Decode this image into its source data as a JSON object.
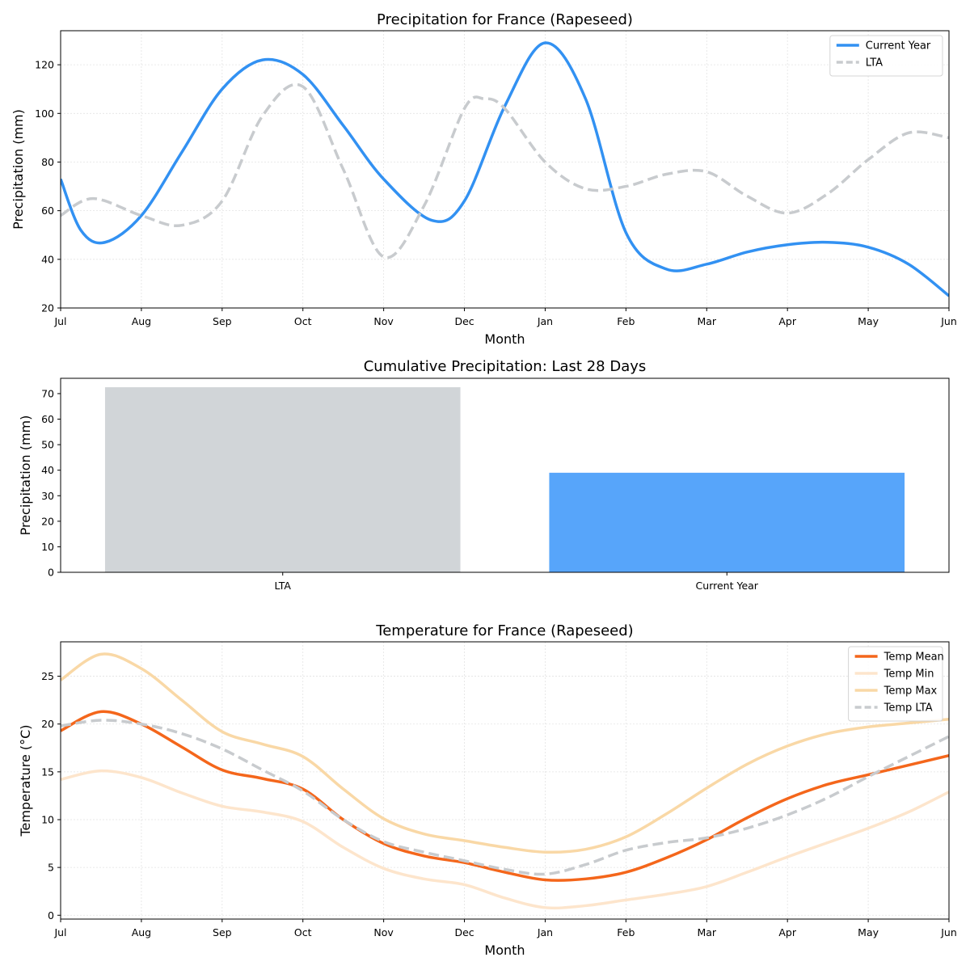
{
  "chart_data": [
    {
      "type": "line",
      "title": "Precipitation for France (Rapeseed)",
      "xlabel": "Month",
      "ylabel": "Precipitation (mm)",
      "x_ticks": [
        "Jul",
        "Aug",
        "Sep",
        "Oct",
        "Nov",
        "Dec",
        "Jan",
        "Feb",
        "Mar",
        "Apr",
        "May",
        "Jun"
      ],
      "xlim": [
        0,
        11
      ],
      "ylim": [
        20,
        134
      ],
      "y_ticks": [
        20,
        40,
        60,
        80,
        100,
        120
      ],
      "grid": true,
      "legend": "top-right",
      "series": [
        {
          "name": "Current Year",
          "color": "#3291f2",
          "dash": "solid",
          "x": [
            0,
            0.25,
            0.55,
            1,
            1.5,
            2,
            2.5,
            3,
            3.5,
            4,
            4.6,
            5,
            5.5,
            6,
            6.5,
            7,
            7.5,
            8,
            8.5,
            9,
            9.5,
            10,
            10.5,
            11
          ],
          "y": [
            73,
            52,
            47,
            58,
            84,
            110,
            122,
            116,
            95,
            73,
            56,
            64,
            103,
            129,
            106,
            51,
            36,
            38,
            43,
            46,
            47,
            45,
            38,
            25
          ]
        },
        {
          "name": "LTA",
          "color": "#c8cbce",
          "dash": "dashed",
          "x": [
            0,
            0.4,
            1,
            1.5,
            2,
            2.5,
            3,
            3.5,
            4,
            4.5,
            5,
            5.25,
            5.5,
            6,
            6.5,
            7,
            7.5,
            8,
            8.5,
            9,
            9.5,
            10,
            10.5,
            11
          ],
          "y": [
            58,
            65,
            58,
            54,
            64,
            99,
            111,
            77,
            41,
            62,
            102,
            106,
            102,
            80,
            69,
            70,
            75,
            76,
            66,
            59,
            67,
            81,
            92,
            90
          ]
        }
      ]
    },
    {
      "type": "bar",
      "title": "Cumulative Precipitation: Last 28 Days",
      "ylabel": "Precipitation (mm)",
      "categories": [
        "LTA",
        "Current Year"
      ],
      "values": [
        72.5,
        39
      ],
      "colors": [
        "#d1d5d8",
        "#57a5fa"
      ],
      "ylim": [
        0,
        76
      ],
      "y_ticks": [
        0,
        10,
        20,
        30,
        40,
        50,
        60,
        70
      ]
    },
    {
      "type": "line",
      "title": "Temperature for France (Rapeseed)",
      "xlabel": "Month",
      "ylabel": "Temperature (°C)",
      "x_ticks": [
        "Jul",
        "Aug",
        "Sep",
        "Oct",
        "Nov",
        "Dec",
        "Jan",
        "Feb",
        "Mar",
        "Apr",
        "May",
        "Jun"
      ],
      "xlim": [
        0,
        11
      ],
      "ylim": [
        -0.4,
        28.6
      ],
      "y_ticks": [
        0,
        5,
        10,
        15,
        20,
        25
      ],
      "grid": true,
      "legend": "top-right",
      "series": [
        {
          "name": "Temp Mean",
          "color": "#f4661b",
          "dash": "solid",
          "x": [
            0,
            0.5,
            1,
            1.5,
            2,
            2.5,
            3,
            3.5,
            4,
            4.5,
            5,
            5.5,
            6,
            6.5,
            7,
            7.5,
            8,
            8.5,
            9,
            9.5,
            10,
            10.5,
            11
          ],
          "y": [
            19.3,
            21.3,
            20.0,
            17.6,
            15.2,
            14.3,
            13.2,
            10.0,
            7.5,
            6.2,
            5.5,
            4.5,
            3.7,
            3.8,
            4.5,
            6.0,
            7.9,
            10.2,
            12.2,
            13.7,
            14.7,
            15.7,
            16.7
          ]
        },
        {
          "name": "Temp Min",
          "color": "#fde5cc",
          "dash": "solid",
          "x": [
            0,
            0.5,
            1,
            1.5,
            2,
            2.5,
            3,
            3.5,
            4,
            4.5,
            5,
            5.5,
            6,
            6.5,
            7,
            7.5,
            8,
            8.5,
            9,
            9.5,
            10,
            10.5,
            11
          ],
          "y": [
            14.2,
            15.1,
            14.4,
            12.8,
            11.4,
            10.8,
            9.8,
            7.1,
            4.9,
            3.8,
            3.2,
            1.8,
            0.8,
            1.0,
            1.6,
            2.2,
            3.0,
            4.5,
            6.1,
            7.6,
            9.1,
            10.8,
            12.9
          ]
        },
        {
          "name": "Temp Max",
          "color": "#f9d8a6",
          "dash": "solid",
          "x": [
            0,
            0.5,
            1,
            1.5,
            2,
            2.5,
            3,
            3.5,
            4,
            4.5,
            5,
            5.5,
            6,
            6.5,
            7,
            7.5,
            8,
            8.5,
            9,
            9.5,
            10,
            10.5,
            11
          ],
          "y": [
            24.6,
            27.3,
            25.8,
            22.5,
            19.2,
            17.9,
            16.6,
            13.2,
            10.1,
            8.5,
            7.8,
            7.1,
            6.6,
            6.9,
            8.2,
            10.6,
            13.3,
            15.8,
            17.7,
            19.0,
            19.7,
            20.1,
            20.5
          ]
        },
        {
          "name": "Temp LTA",
          "color": "#c8cbce",
          "dash": "dashed",
          "x": [
            0,
            0.5,
            1,
            1.5,
            2,
            2.5,
            3,
            3.5,
            4,
            4.5,
            5,
            5.5,
            6,
            6.5,
            7,
            7.5,
            8,
            8.5,
            9,
            9.5,
            10,
            10.5,
            11
          ],
          "y": [
            19.8,
            20.4,
            20.0,
            19.0,
            17.4,
            15.2,
            13.0,
            10.0,
            7.7,
            6.6,
            5.7,
            4.8,
            4.3,
            5.3,
            6.8,
            7.6,
            8.1,
            9.1,
            10.5,
            12.3,
            14.5,
            16.6,
            18.7
          ]
        }
      ]
    }
  ]
}
